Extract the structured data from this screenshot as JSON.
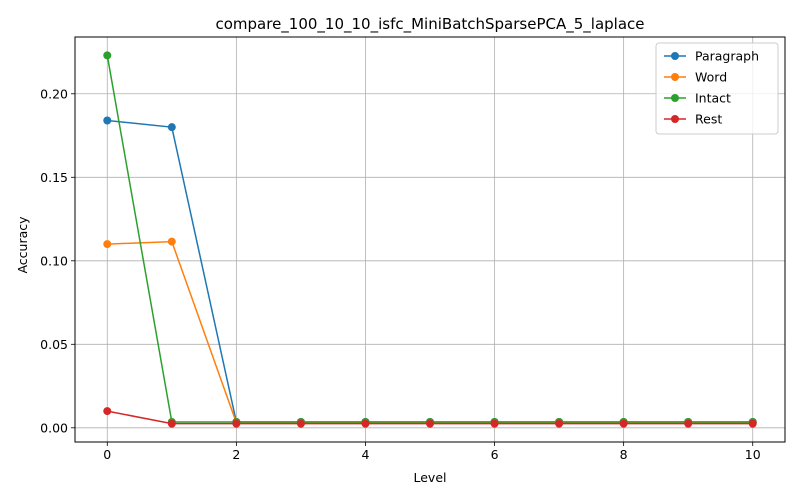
{
  "chart_data": {
    "type": "line",
    "title": "compare_100_10_10_isfc_MiniBatchSparsePCA_5_laplace",
    "xlabel": "Level",
    "ylabel": "Accuracy",
    "x": [
      0,
      1,
      2,
      3,
      4,
      5,
      6,
      7,
      8,
      9,
      10
    ],
    "xlim": [
      -0.5,
      10.5
    ],
    "ylim": [
      -0.0085,
      0.234
    ],
    "xticks": [
      0,
      2,
      4,
      6,
      8,
      10
    ],
    "yticks": [
      0.0,
      0.05,
      0.1,
      0.15,
      0.2
    ],
    "xtick_labels": [
      "0",
      "2",
      "4",
      "6",
      "8",
      "10"
    ],
    "ytick_labels": [
      "0.00",
      "0.05",
      "0.10",
      "0.15",
      "0.20"
    ],
    "grid": true,
    "legend_position": "top-right",
    "series": [
      {
        "name": "Paragraph",
        "color": "#1f77b4",
        "values": [
          0.184,
          0.18,
          0.0035,
          0.0035,
          0.0035,
          0.0035,
          0.0035,
          0.0035,
          0.0035,
          0.0035,
          0.0035
        ]
      },
      {
        "name": "Word",
        "color": "#ff7f0e",
        "values": [
          0.11,
          0.1115,
          0.003,
          0.003,
          0.003,
          0.003,
          0.003,
          0.003,
          0.003,
          0.003,
          0.003
        ]
      },
      {
        "name": "Intact",
        "color": "#2ca02c",
        "values": [
          0.223,
          0.0035,
          0.0035,
          0.0035,
          0.0035,
          0.0035,
          0.0035,
          0.0035,
          0.0035,
          0.0035,
          0.0035
        ]
      },
      {
        "name": "Rest",
        "color": "#d62728",
        "values": [
          0.01,
          0.0025,
          0.0025,
          0.0025,
          0.0025,
          0.0025,
          0.0025,
          0.0025,
          0.0025,
          0.0025,
          0.0025
        ]
      }
    ]
  }
}
